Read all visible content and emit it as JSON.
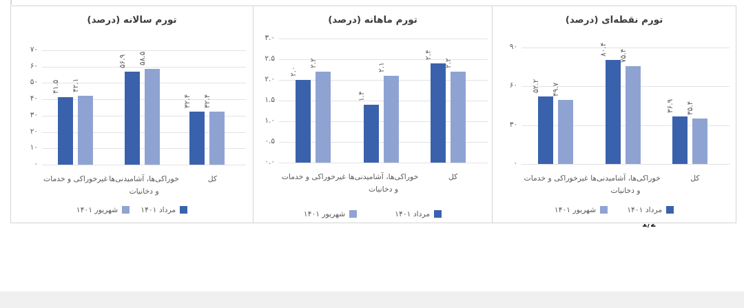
{
  "page_marker": "1/2",
  "colors": {
    "series1": "#3A62AC",
    "series2": "#8FA3D3",
    "gridline": "#e2e2e6",
    "panel_border": "#d4d4d4",
    "muted_text": "#595959",
    "title_text": "#3d3d3d"
  },
  "legend": {
    "series1_label": "مرداد ۱۴۰۱",
    "series2_label": "شهریور ۱۴۰۱"
  },
  "chart_data": [
    {
      "type": "bar",
      "title": "تورم سالانه (درصد)",
      "categories": [
        "غیرخوراکی و خدمات",
        "خوراکی‌ها، آشامیدنی‌ها و دخانیات",
        "کل"
      ],
      "categories_lines": [
        [
          "غیرخوراکی و خدمات"
        ],
        [
          "خوراکی‌ها، آشامیدنی‌ها",
          "و دخانیات"
        ],
        [
          "کل"
        ]
      ],
      "series": [
        {
          "name": "مرداد ۱۴۰۱",
          "values": [
            41.5,
            56.9,
            32.4
          ],
          "display_labels": [
            "۴۱.۵",
            "۵۶.۹",
            "۳۲.۴"
          ]
        },
        {
          "name": "شهریور ۱۴۰۱",
          "values": [
            42.1,
            58.5,
            32.4
          ],
          "display_labels": [
            "۴۲.۱",
            "۵۸.۵",
            "۳۲.۴"
          ]
        }
      ],
      "ylim": [
        0,
        70
      ],
      "yticks": [
        {
          "v": 0,
          "label": "۰"
        },
        {
          "v": 10,
          "label": "۱۰"
        },
        {
          "v": 20,
          "label": "۲۰"
        },
        {
          "v": 30,
          "label": "۳۰"
        },
        {
          "v": 40,
          "label": "۴۰"
        },
        {
          "v": 50,
          "label": "۵۰"
        },
        {
          "v": 60,
          "label": "۶۰"
        },
        {
          "v": 70,
          "label": "۷۰"
        }
      ],
      "grid": true,
      "legend_position": "bottom"
    },
    {
      "type": "bar",
      "title": "تورم ماهانه (درصد)",
      "categories": [
        "غیرخوراکی و خدمات",
        "خوراکی‌ها، آشامیدنی‌ها و دخانیات",
        "کل"
      ],
      "categories_lines": [
        [
          "غیرخوراکی و خدمات"
        ],
        [
          "خوراکی‌ها، آشامیدنی‌ها",
          "و دخانیات"
        ],
        [
          "کل"
        ]
      ],
      "series": [
        {
          "name": "مرداد ۱۴۰۱",
          "values": [
            2.0,
            1.4,
            2.4
          ],
          "display_labels": [
            "۲.۰",
            "۱.۴",
            "۲.۴"
          ]
        },
        {
          "name": "شهریور ۱۴۰۱",
          "values": [
            2.2,
            2.1,
            2.2
          ],
          "display_labels": [
            "۲.۲",
            "۲.۱",
            "۲.۲"
          ]
        }
      ],
      "ylim": [
        0,
        3
      ],
      "yticks": [
        {
          "v": 0,
          "label": "۰.۰"
        },
        {
          "v": 0.5,
          "label": "۰.۵"
        },
        {
          "v": 1,
          "label": "۱.۰"
        },
        {
          "v": 1.5,
          "label": "۱.۵"
        },
        {
          "v": 2,
          "label": "۲.۰"
        },
        {
          "v": 2.5,
          "label": "۲.۵"
        },
        {
          "v": 3,
          "label": "۳.۰"
        }
      ],
      "grid": true,
      "legend_position": "bottom"
    },
    {
      "type": "bar",
      "title": "تورم نقطه‌ای (درصد)",
      "categories": [
        "غیرخوراکی و خدمات",
        "خوراکی‌ها، آشامیدنی‌ها و دخانیات",
        "کل"
      ],
      "categories_lines": [
        [
          "غیرخوراکی و خدمات"
        ],
        [
          "خوراکی‌ها، آشامیدنی‌ها",
          "و دخانیات"
        ],
        [
          "کل"
        ]
      ],
      "series": [
        {
          "name": "مرداد ۱۴۰۱",
          "values": [
            52.2,
            80.4,
            36.9
          ],
          "display_labels": [
            "۵۲.۲",
            "۸۰.۴",
            "۳۶.۹"
          ]
        },
        {
          "name": "شهریور ۱۴۰۱",
          "values": [
            49.7,
            75.4,
            35.4
          ],
          "display_labels": [
            "۴۹.۷",
            "۷۵.۴",
            "۳۵.۴"
          ]
        }
      ],
      "ylim": [
        0,
        90
      ],
      "yticks": [
        {
          "v": 0,
          "label": "۰"
        },
        {
          "v": 30,
          "label": "۳۰"
        },
        {
          "v": 60,
          "label": "۶۰"
        },
        {
          "v": 90,
          "label": "۹۰"
        }
      ],
      "grid": true,
      "legend_position": "bottom"
    }
  ]
}
